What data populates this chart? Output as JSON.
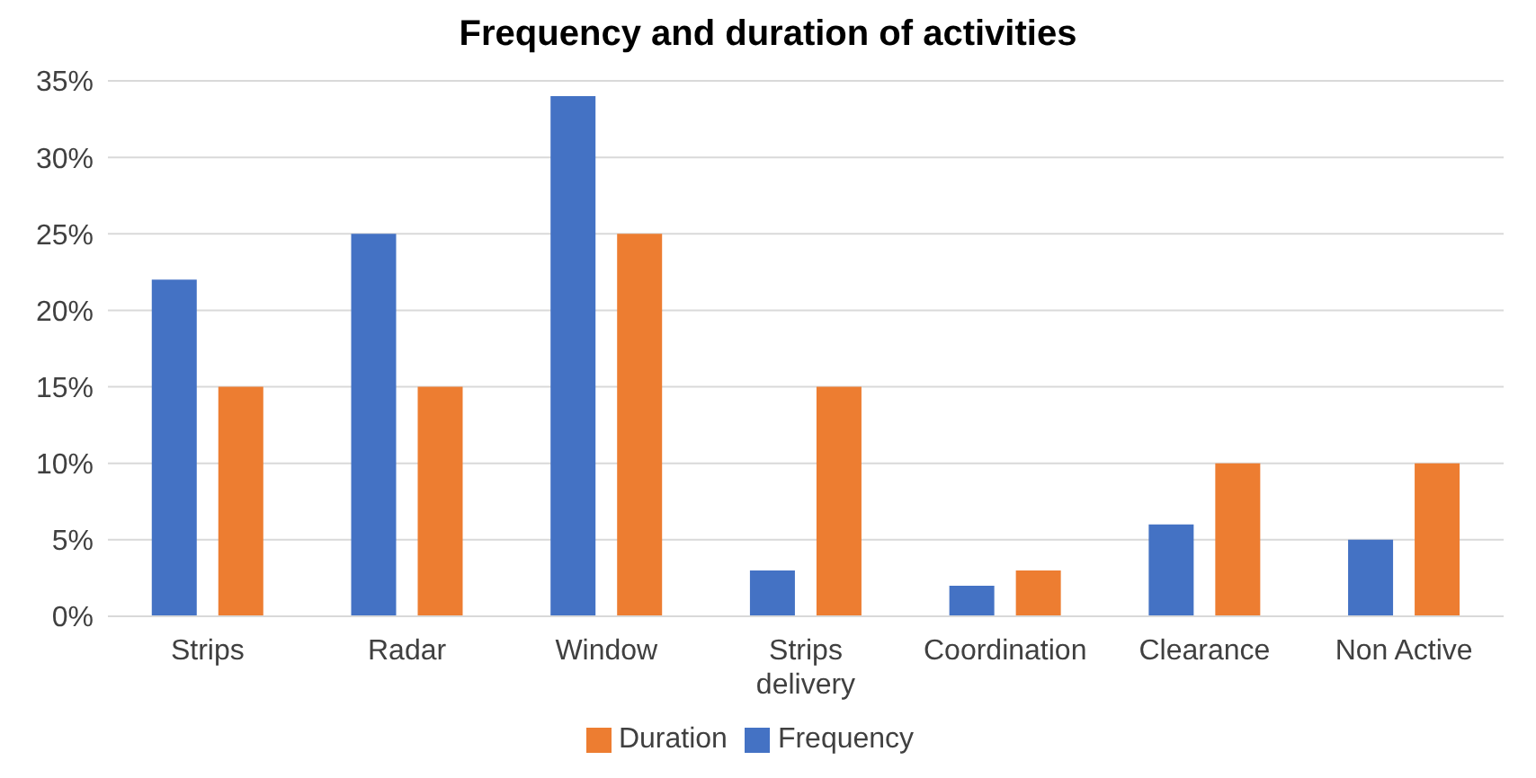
{
  "chart_data": {
    "type": "bar",
    "title": "Frequency and duration of activities",
    "categories": [
      "Strips",
      "Radar",
      "Window",
      "Strips delivery",
      "Coordination",
      "Clearance",
      "Non Active"
    ],
    "series": [
      {
        "name": "Frequency",
        "color": "#4472c4",
        "values": [
          22,
          25,
          34,
          3,
          2,
          6,
          5
        ]
      },
      {
        "name": "Duration",
        "color": "#ed7d31",
        "values": [
          15,
          15,
          25,
          15,
          3,
          10,
          10
        ]
      }
    ],
    "ylim": [
      0,
      35
    ],
    "yticks": [
      {
        "value": 0,
        "label": "0%"
      },
      {
        "value": 5,
        "label": "5%"
      },
      {
        "value": 10,
        "label": "10%"
      },
      {
        "value": 15,
        "label": "15%"
      },
      {
        "value": 20,
        "label": "20%"
      },
      {
        "value": 25,
        "label": "25%"
      },
      {
        "value": 30,
        "label": "30%"
      },
      {
        "value": 35,
        "label": "35%"
      }
    ],
    "grid": "y",
    "legend": "bottom"
  }
}
